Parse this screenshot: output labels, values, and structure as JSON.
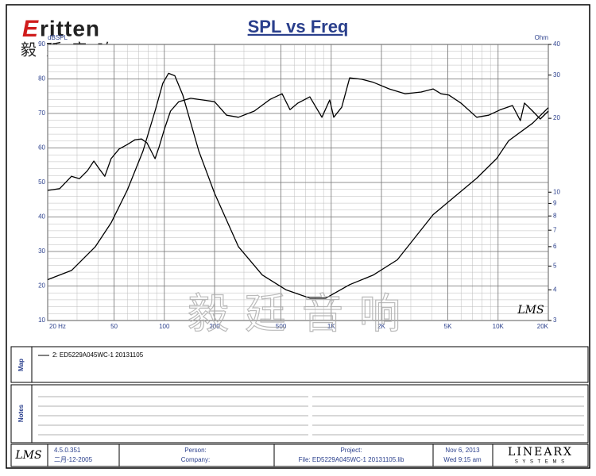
{
  "chart_data": {
    "type": "line",
    "title": "SPL vs Freq",
    "ylabel": "dBSPL",
    "y2label": "Ohm",
    "xscale": "log",
    "y2scale": "log",
    "grid": true,
    "xlim": [
      20,
      20000
    ],
    "ylim": [
      10,
      90
    ],
    "y2lim": [
      3,
      40
    ],
    "xticks": [
      {
        "value": 20,
        "label": "20 Hz"
      },
      50,
      100,
      200,
      500,
      {
        "value": 1000,
        "label": "1K"
      },
      {
        "value": 2000,
        "label": "2K"
      },
      {
        "value": 5000,
        "label": "5K"
      },
      {
        "value": 10000,
        "label": "10K"
      },
      {
        "value": 20000,
        "label": "20K"
      }
    ],
    "yticks": [
      10,
      20,
      30,
      40,
      50,
      60,
      70,
      80,
      90
    ],
    "y2ticks": [
      3,
      4,
      5,
      6,
      7,
      8,
      9,
      10,
      20,
      30,
      40
    ],
    "series": [
      {
        "name": "2: ED5229A045WC-1  20131105",
        "color": "#000000",
        "x": [
          20,
          23.6,
          27.8,
          31,
          34.6,
          37.8,
          40.8,
          44,
          48,
          53.6,
          60,
          66.8,
          73,
          78.7,
          88,
          93,
          100,
          109,
          122,
          144,
          170,
          200,
          236,
          278,
          346,
          431,
          508,
          566,
          632,
          745,
          880,
          980,
          1036,
          1156,
          1290,
          1520,
          1790,
          2230,
          2780,
          3460,
          4080,
          4550,
          5080,
          5990,
          7450,
          8790,
          10350,
          12200,
          13600,
          14400,
          16100,
          17900,
          20000
        ],
        "values": [
          47.7,
          48.2,
          51.8,
          51.1,
          53.4,
          56.2,
          53.9,
          51.8,
          56.9,
          59.7,
          61,
          62.4,
          62.6,
          61.5,
          56.9,
          60.3,
          65.4,
          70.7,
          73.4,
          74.4,
          73.9,
          73.4,
          69.5,
          68.9,
          70.7,
          74.1,
          75.7,
          71.1,
          73,
          74.8,
          68.9,
          73.9,
          68.9,
          71.8,
          80.3,
          79.9,
          79,
          77.1,
          75.7,
          76.2,
          77.1,
          75.7,
          75.3,
          73,
          68.9,
          69.5,
          71.1,
          72.3,
          67.9,
          73,
          70.7,
          68.4,
          70.7
        ]
      },
      {
        "color": "#000000",
        "axis": "y2",
        "x": [
          20,
          27.8,
          38.6,
          48,
          60,
          74.5,
          88,
          98,
          106,
          115.6,
          129,
          161,
          200,
          278,
          386,
          537,
          745,
          928,
          1290,
          1790,
          2490,
          4080,
          7450,
          9800,
          11570,
          16100,
          20000
        ],
        "values": [
          4.4,
          4.8,
          6.0,
          7.5,
          10.2,
          14.7,
          21.4,
          27.8,
          30.5,
          29.8,
          24.9,
          14.7,
          9.9,
          6.0,
          4.6,
          4.0,
          3.7,
          3.7,
          4.2,
          4.6,
          5.3,
          8.1,
          11.4,
          13.7,
          16.2,
          19.1,
          22.1
        ]
      }
    ]
  },
  "page": {
    "logo": "ritten",
    "logo_cn": "毅廷音响",
    "watermark": "毅廷音响",
    "lms": "LMS",
    "map_label": "Map",
    "notes_label": "Notes",
    "version": "4.5.0.351",
    "build_date": "二月-12-2005",
    "person": "Person:",
    "company": "Company:",
    "project": "Project:",
    "file": "File: ED5229A045WC-1 20131105.lib",
    "date": "Nov  6, 2013",
    "time": "Wed  9:15 am",
    "brand": "LINEARX",
    "brand_sub": "S Y S T E M S"
  }
}
